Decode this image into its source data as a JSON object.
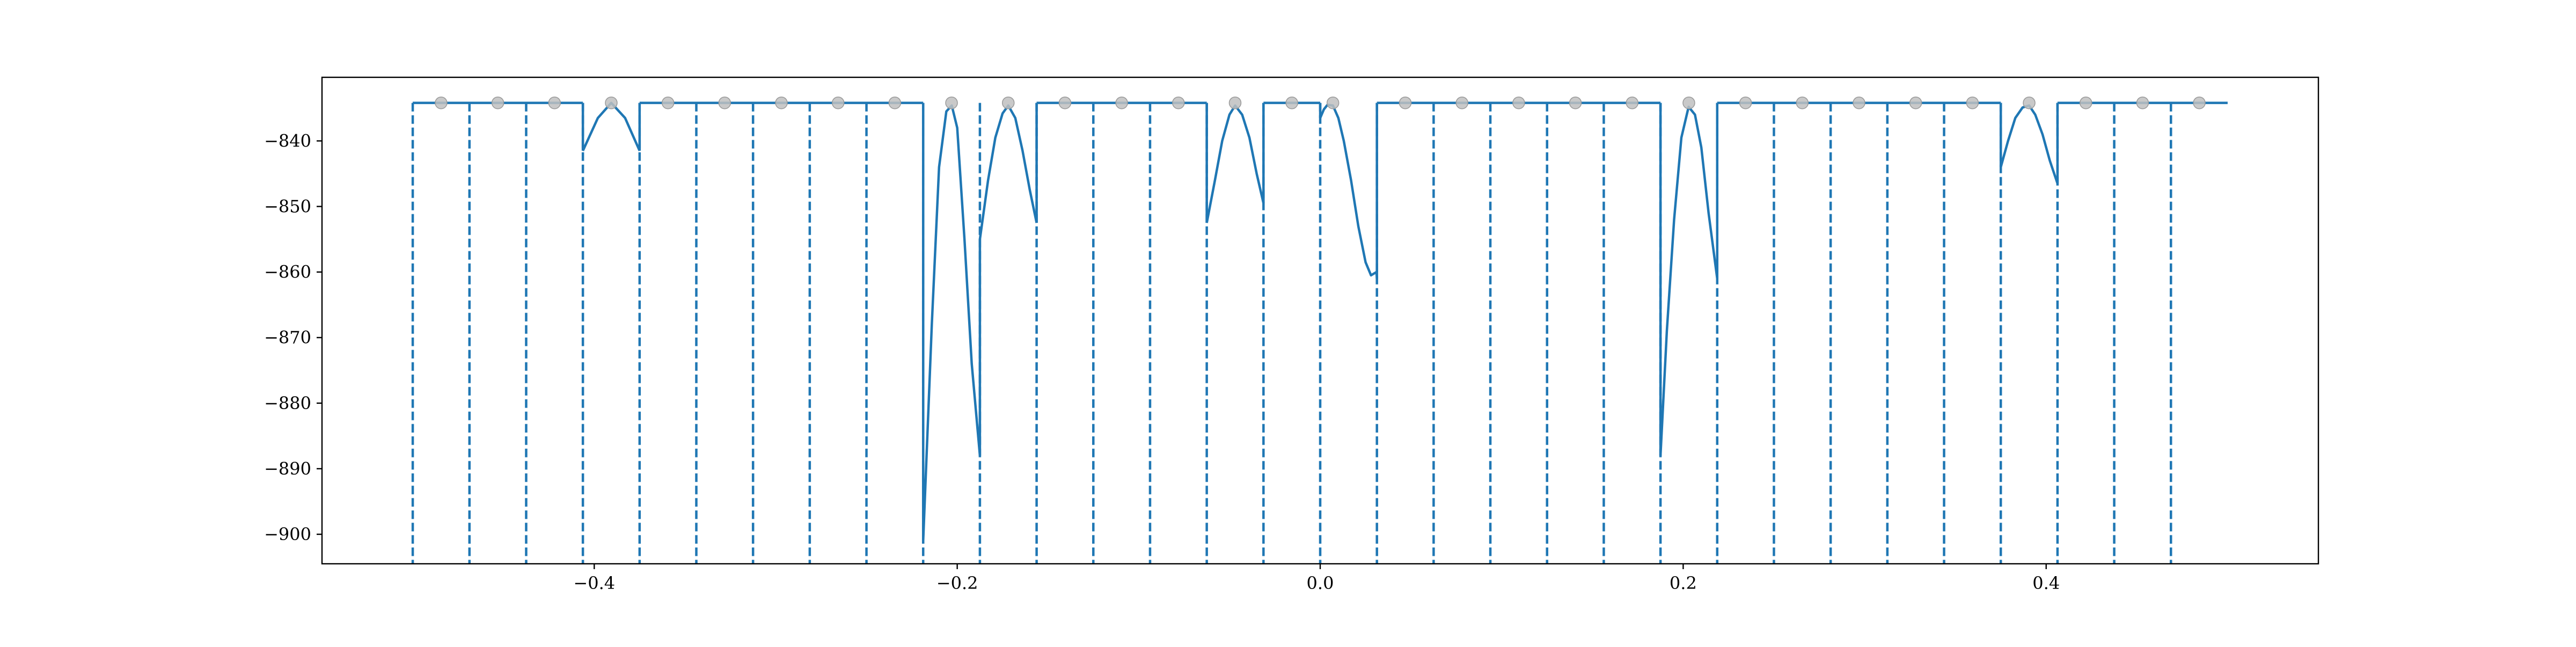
{
  "chart_data": {
    "type": "line",
    "title": "",
    "xlabel": "",
    "ylabel": "",
    "xlim": [
      -0.55,
      0.55
    ],
    "ylim": [
      -904.5,
      -830.3
    ],
    "grid": false,
    "legend": null,
    "x_ticks": [
      {
        "value": -0.4,
        "label": "−0.4"
      },
      {
        "value": -0.2,
        "label": "−0.2"
      },
      {
        "value": 0.0,
        "label": "0.0"
      },
      {
        "value": 0.2,
        "label": "0.2"
      },
      {
        "value": 0.4,
        "label": "0.4"
      }
    ],
    "y_ticks": [
      {
        "value": -840,
        "label": "−840"
      },
      {
        "value": -850,
        "label": "−850"
      },
      {
        "value": -860,
        "label": "−860"
      },
      {
        "value": -870,
        "label": "−870"
      },
      {
        "value": -880,
        "label": "−880"
      },
      {
        "value": -890,
        "label": "−890"
      },
      {
        "value": -900,
        "label": "−900"
      }
    ],
    "boundaries": [
      -0.5,
      -0.46875,
      -0.4375,
      -0.40625,
      -0.375,
      -0.34375,
      -0.3125,
      -0.28125,
      -0.25,
      -0.21875,
      -0.1875,
      -0.15625,
      -0.125,
      -0.09375,
      -0.0625,
      -0.03125,
      0.0,
      0.03125,
      0.0625,
      0.09375,
      0.125,
      0.15625,
      0.1875,
      0.21875,
      0.25,
      0.28125,
      0.3125,
      0.34375,
      0.375,
      0.40625,
      0.4375,
      0.46875
    ],
    "boundary_color": "#1f77b4",
    "reference_points": {
      "x": [
        -0.484375,
        -0.453125,
        -0.421875,
        -0.390625,
        -0.359375,
        -0.328125,
        -0.296875,
        -0.265625,
        -0.234375,
        -0.203125,
        -0.171875,
        -0.140625,
        -0.109375,
        -0.078125,
        -0.046875,
        -0.015625,
        0.007,
        0.046875,
        0.078125,
        0.109375,
        0.140625,
        0.171875,
        0.203125,
        0.234375,
        0.265625,
        0.296875,
        0.328125,
        0.359375,
        0.390625,
        0.421875,
        0.453125,
        0.484375
      ],
      "y": -834.2,
      "color": "#bfbfbf"
    },
    "series": [
      {
        "color": "#1f77b4",
        "segments": [
          {
            "x": [
              -0.5,
              -0.40625
            ],
            "y": [
              -834.2,
              -834.2
            ]
          },
          {
            "x": [
              -0.40625,
              -0.398,
              -0.390625,
              -0.383,
              -0.375
            ],
            "y": [
              -841.5,
              -836.5,
              -834.2,
              -836.5,
              -841.5
            ]
          },
          {
            "x": [
              -0.375,
              -0.21875
            ],
            "y": [
              -834.2,
              -834.2
            ]
          },
          {
            "x": [
              -0.21875,
              -0.214,
              -0.21,
              -0.206,
              -0.203,
              -0.2,
              -0.196,
              -0.192,
              -0.1875
            ],
            "y": [
              -901.0,
              -868.0,
              -844.0,
              -835.5,
              -834.6,
              -838.0,
              -855.0,
              -874.0,
              -888.0
            ]
          },
          {
            "x": [
              -0.1875,
              -0.183,
              -0.179,
              -0.175,
              -0.171875,
              -0.168,
              -0.164,
              -0.16,
              -0.15625
            ],
            "y": [
              -855.0,
              -846.0,
              -839.5,
              -835.8,
              -834.6,
              -836.5,
              -841.5,
              -847.5,
              -852.5
            ]
          },
          {
            "x": [
              -0.15625,
              -0.0625
            ],
            "y": [
              -834.2,
              -834.2
            ]
          },
          {
            "x": [
              -0.0625,
              -0.058,
              -0.054,
              -0.05,
              -0.046875,
              -0.043,
              -0.039,
              -0.035,
              -0.03125
            ],
            "y": [
              -852.5,
              -846.0,
              -840.0,
              -836.0,
              -834.6,
              -836.0,
              -839.5,
              -845.0,
              -849.5
            ]
          },
          {
            "x": [
              -0.03125,
              0.0
            ],
            "y": [
              -834.2,
              -834.2
            ]
          },
          {
            "x": [
              0.0,
              0.002,
              0.004,
              0.007,
              0.01,
              0.013,
              0.017,
              0.021,
              0.025,
              0.028,
              0.031,
              0.03125
            ],
            "y": [
              -836.5,
              -835.2,
              -834.5,
              -834.6,
              -836.5,
              -840.0,
              -846.0,
              -853.0,
              -858.5,
              -860.5,
              -860.0,
              -861.0
            ]
          },
          {
            "x": [
              0.03125,
              0.1875
            ],
            "y": [
              -834.2,
              -834.2
            ]
          },
          {
            "x": [
              0.1875,
              0.191,
              0.195,
              0.199,
              0.203,
              0.2065,
              0.21,
              0.214,
              0.21875
            ],
            "y": [
              -888.0,
              -869.0,
              -852.0,
              -839.5,
              -834.8,
              -836.0,
              -841.0,
              -851.0,
              -861.0
            ]
          },
          {
            "x": [
              0.21875,
              0.375
            ],
            "y": [
              -834.2,
              -834.2
            ]
          },
          {
            "x": [
              0.375,
              0.379,
              0.383,
              0.387,
              0.390625,
              0.394,
              0.398,
              0.402,
              0.40625
            ],
            "y": [
              -844.0,
              -840.0,
              -836.5,
              -834.9,
              -834.6,
              -836.0,
              -839.0,
              -843.0,
              -846.5
            ]
          },
          {
            "x": [
              0.40625,
              0.5
            ],
            "y": [
              -834.2,
              -834.2
            ]
          }
        ]
      }
    ]
  }
}
